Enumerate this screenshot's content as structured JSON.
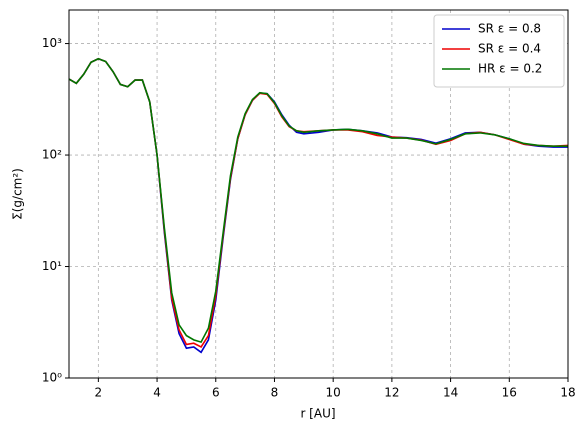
{
  "chart_data": {
    "type": "line",
    "xlabel": "r [AU]",
    "ylabel": "Σ(g/cm²)",
    "x": [
      1,
      1.25,
      1.5,
      1.75,
      2,
      2.25,
      2.5,
      2.75,
      3,
      3.25,
      3.5,
      3.75,
      4,
      4.25,
      4.5,
      4.75,
      5,
      5.25,
      5.5,
      5.75,
      6,
      6.25,
      6.5,
      6.75,
      7,
      7.25,
      7.5,
      7.75,
      8,
      8.25,
      8.5,
      8.75,
      9,
      9.5,
      10,
      10.5,
      11,
      11.5,
      12,
      12.5,
      13,
      13.5,
      14,
      14.5,
      15,
      15.5,
      16,
      16.5,
      17,
      17.5,
      18
    ],
    "series": [
      {
        "name": "SR  ε = 0.8",
        "color": "#0000cc",
        "values": [
          480,
          440,
          530,
          680,
          730,
          690,
          560,
          430,
          410,
          470,
          470,
          300,
          100,
          20,
          5,
          2.5,
          1.85,
          1.9,
          1.7,
          2.2,
          5,
          18,
          60,
          140,
          230,
          310,
          360,
          355,
          300,
          230,
          185,
          160,
          155,
          160,
          168,
          170,
          165,
          158,
          145,
          143,
          138,
          128,
          140,
          158,
          160,
          152,
          140,
          125,
          120,
          118,
          118
        ]
      },
      {
        "name": "SR  ε = 0.4",
        "color": "#ee0000",
        "values": [
          480,
          440,
          530,
          680,
          730,
          690,
          560,
          430,
          410,
          470,
          470,
          300,
          100,
          21,
          5.2,
          2.7,
          2.0,
          2.05,
          1.9,
          2.4,
          5.5,
          19,
          62,
          140,
          230,
          310,
          358,
          350,
          290,
          220,
          180,
          165,
          162,
          165,
          168,
          168,
          162,
          150,
          145,
          142,
          136,
          125,
          135,
          155,
          160,
          152,
          138,
          125,
          122,
          120,
          122
        ]
      },
      {
        "name": "HR ε = 0.2",
        "color": "#007700",
        "values": [
          480,
          440,
          530,
          680,
          730,
          690,
          560,
          430,
          410,
          470,
          470,
          300,
          100,
          22,
          5.8,
          3.0,
          2.4,
          2.2,
          2.1,
          2.8,
          6,
          20,
          65,
          145,
          235,
          315,
          362,
          355,
          295,
          225,
          182,
          165,
          160,
          165,
          168,
          170,
          165,
          155,
          142,
          142,
          135,
          126,
          138,
          155,
          158,
          152,
          140,
          127,
          122,
          120,
          120
        ]
      }
    ],
    "xlim": [
      1,
      18
    ],
    "xticks": [
      2,
      4,
      6,
      8,
      10,
      12,
      14,
      16,
      18
    ],
    "ylim": [
      1,
      2000
    ],
    "yscale": "log",
    "yticks": [
      {
        "value": 1,
        "label": "10⁰"
      },
      {
        "value": 10,
        "label": "10¹"
      },
      {
        "value": 100,
        "label": "10²"
      },
      {
        "value": 1000,
        "label": "10³"
      }
    ],
    "grid": true,
    "legend": "upper right"
  }
}
